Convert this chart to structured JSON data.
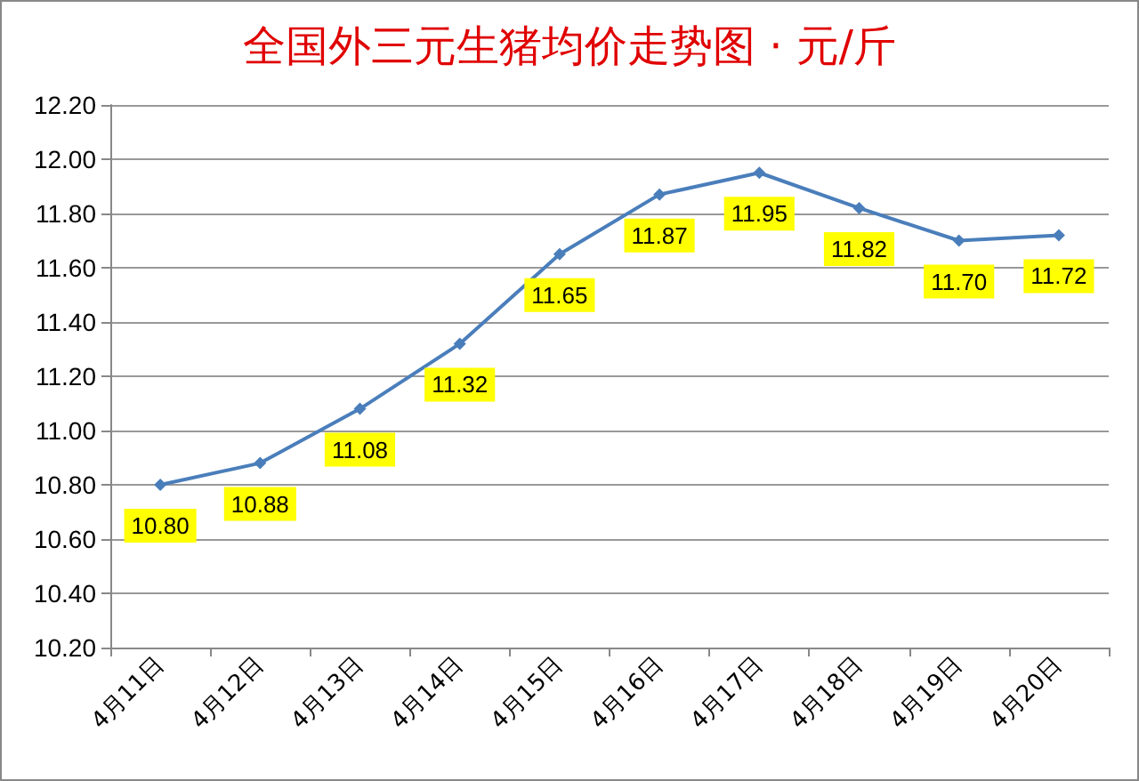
{
  "chart_data": {
    "type": "line",
    "title": "全国外三元生猪均价走势图 · 元/斤",
    "categories": [
      "4月11日",
      "4月12日",
      "4月13日",
      "4月14日",
      "4月15日",
      "4月16日",
      "4月17日",
      "4月18日",
      "4月19日",
      "4月20日"
    ],
    "series": [
      {
        "color": "#4a7ebb",
        "values": [
          10.8,
          10.88,
          11.08,
          11.32,
          11.65,
          11.87,
          11.95,
          11.82,
          11.7,
          11.72
        ],
        "value_labels": [
          "10.80",
          "10.88",
          "11.08",
          "11.32",
          "11.65",
          "11.87",
          "11.95",
          "11.82",
          "11.70",
          "11.72"
        ]
      }
    ],
    "ylim": [
      10.2,
      12.2
    ],
    "yticks": [
      {
        "value": 10.2,
        "label": "10.20"
      },
      {
        "value": 10.4,
        "label": "10.40"
      },
      {
        "value": 10.6,
        "label": "10.60"
      },
      {
        "value": 10.8,
        "label": "10.80"
      },
      {
        "value": 11.0,
        "label": "11.00"
      },
      {
        "value": 11.2,
        "label": "11.20"
      },
      {
        "value": 11.4,
        "label": "11.40"
      },
      {
        "value": 11.6,
        "label": "11.60"
      },
      {
        "value": 11.8,
        "label": "11.80"
      },
      {
        "value": 12.0,
        "label": "12.00"
      },
      {
        "value": 12.2,
        "label": "12.20"
      }
    ],
    "grid": "y",
    "marker": "diamond",
    "line_style": "solid"
  }
}
